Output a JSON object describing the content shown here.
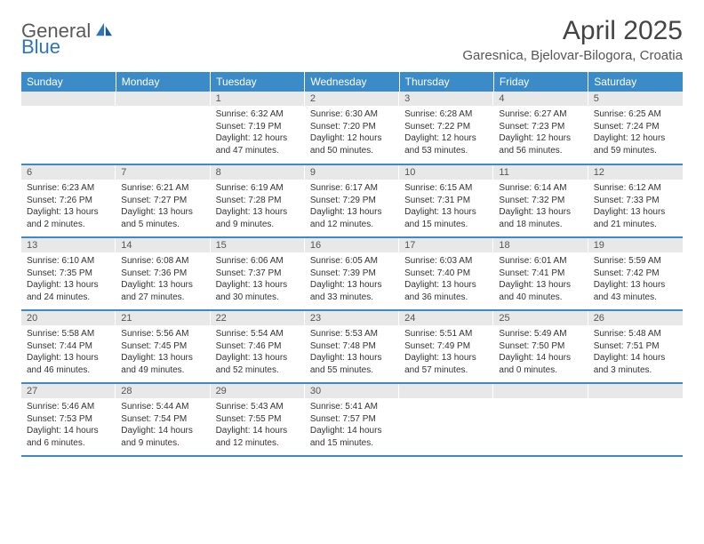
{
  "logo": {
    "text1": "General",
    "text2": "Blue"
  },
  "title": "April 2025",
  "location": "Garesnica, Bjelovar-Bilogora, Croatia",
  "colors": {
    "header_bg": "#3b8bc9",
    "header_text": "#ffffff",
    "daynum_bg": "#e8e8e8",
    "row_divider": "#3b8bc9",
    "logo_gray": "#5a5a5a",
    "logo_blue": "#2f76b8"
  },
  "weekdays": [
    "Sunday",
    "Monday",
    "Tuesday",
    "Wednesday",
    "Thursday",
    "Friday",
    "Saturday"
  ],
  "first_weekday_index": 2,
  "days": [
    {
      "n": 1,
      "sunrise": "6:32 AM",
      "sunset": "7:19 PM",
      "daylight": "12 hours and 47 minutes."
    },
    {
      "n": 2,
      "sunrise": "6:30 AM",
      "sunset": "7:20 PM",
      "daylight": "12 hours and 50 minutes."
    },
    {
      "n": 3,
      "sunrise": "6:28 AM",
      "sunset": "7:22 PM",
      "daylight": "12 hours and 53 minutes."
    },
    {
      "n": 4,
      "sunrise": "6:27 AM",
      "sunset": "7:23 PM",
      "daylight": "12 hours and 56 minutes."
    },
    {
      "n": 5,
      "sunrise": "6:25 AM",
      "sunset": "7:24 PM",
      "daylight": "12 hours and 59 minutes."
    },
    {
      "n": 6,
      "sunrise": "6:23 AM",
      "sunset": "7:26 PM",
      "daylight": "13 hours and 2 minutes."
    },
    {
      "n": 7,
      "sunrise": "6:21 AM",
      "sunset": "7:27 PM",
      "daylight": "13 hours and 5 minutes."
    },
    {
      "n": 8,
      "sunrise": "6:19 AM",
      "sunset": "7:28 PM",
      "daylight": "13 hours and 9 minutes."
    },
    {
      "n": 9,
      "sunrise": "6:17 AM",
      "sunset": "7:29 PM",
      "daylight": "13 hours and 12 minutes."
    },
    {
      "n": 10,
      "sunrise": "6:15 AM",
      "sunset": "7:31 PM",
      "daylight": "13 hours and 15 minutes."
    },
    {
      "n": 11,
      "sunrise": "6:14 AM",
      "sunset": "7:32 PM",
      "daylight": "13 hours and 18 minutes."
    },
    {
      "n": 12,
      "sunrise": "6:12 AM",
      "sunset": "7:33 PM",
      "daylight": "13 hours and 21 minutes."
    },
    {
      "n": 13,
      "sunrise": "6:10 AM",
      "sunset": "7:35 PM",
      "daylight": "13 hours and 24 minutes."
    },
    {
      "n": 14,
      "sunrise": "6:08 AM",
      "sunset": "7:36 PM",
      "daylight": "13 hours and 27 minutes."
    },
    {
      "n": 15,
      "sunrise": "6:06 AM",
      "sunset": "7:37 PM",
      "daylight": "13 hours and 30 minutes."
    },
    {
      "n": 16,
      "sunrise": "6:05 AM",
      "sunset": "7:39 PM",
      "daylight": "13 hours and 33 minutes."
    },
    {
      "n": 17,
      "sunrise": "6:03 AM",
      "sunset": "7:40 PM",
      "daylight": "13 hours and 36 minutes."
    },
    {
      "n": 18,
      "sunrise": "6:01 AM",
      "sunset": "7:41 PM",
      "daylight": "13 hours and 40 minutes."
    },
    {
      "n": 19,
      "sunrise": "5:59 AM",
      "sunset": "7:42 PM",
      "daylight": "13 hours and 43 minutes."
    },
    {
      "n": 20,
      "sunrise": "5:58 AM",
      "sunset": "7:44 PM",
      "daylight": "13 hours and 46 minutes."
    },
    {
      "n": 21,
      "sunrise": "5:56 AM",
      "sunset": "7:45 PM",
      "daylight": "13 hours and 49 minutes."
    },
    {
      "n": 22,
      "sunrise": "5:54 AM",
      "sunset": "7:46 PM",
      "daylight": "13 hours and 52 minutes."
    },
    {
      "n": 23,
      "sunrise": "5:53 AM",
      "sunset": "7:48 PM",
      "daylight": "13 hours and 55 minutes."
    },
    {
      "n": 24,
      "sunrise": "5:51 AM",
      "sunset": "7:49 PM",
      "daylight": "13 hours and 57 minutes."
    },
    {
      "n": 25,
      "sunrise": "5:49 AM",
      "sunset": "7:50 PM",
      "daylight": "14 hours and 0 minutes."
    },
    {
      "n": 26,
      "sunrise": "5:48 AM",
      "sunset": "7:51 PM",
      "daylight": "14 hours and 3 minutes."
    },
    {
      "n": 27,
      "sunrise": "5:46 AM",
      "sunset": "7:53 PM",
      "daylight": "14 hours and 6 minutes."
    },
    {
      "n": 28,
      "sunrise": "5:44 AM",
      "sunset": "7:54 PM",
      "daylight": "14 hours and 9 minutes."
    },
    {
      "n": 29,
      "sunrise": "5:43 AM",
      "sunset": "7:55 PM",
      "daylight": "14 hours and 12 minutes."
    },
    {
      "n": 30,
      "sunrise": "5:41 AM",
      "sunset": "7:57 PM",
      "daylight": "14 hours and 15 minutes."
    }
  ],
  "labels": {
    "sunrise": "Sunrise:",
    "sunset": "Sunset:",
    "daylight": "Daylight:"
  }
}
